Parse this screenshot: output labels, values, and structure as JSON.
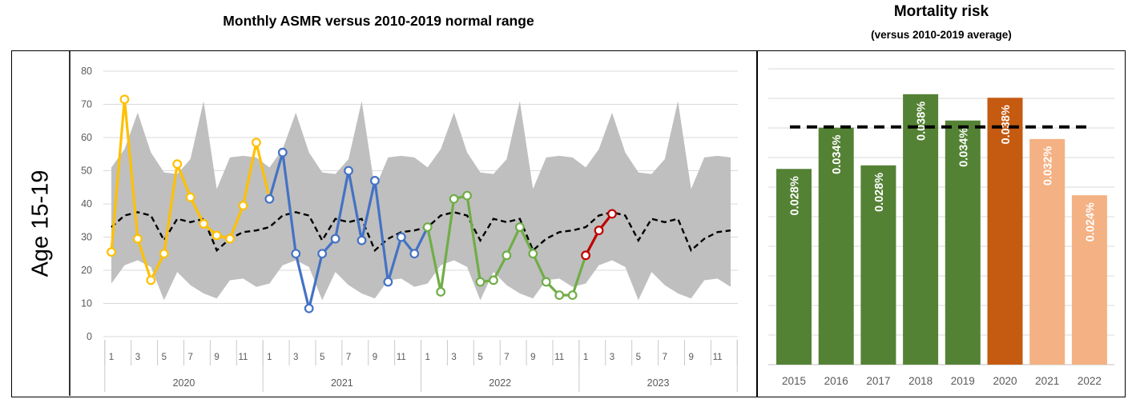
{
  "theme": {
    "grid_color": "#D9D9D9",
    "tick_text_color": "#595959",
    "axis_tick_color": "#C9C9C9",
    "border_color": "#000000"
  },
  "chart_data": [
    {
      "type": "line",
      "title": "Monthly ASMR versus 2010-2019 normal range",
      "row_label": "Age 15-19",
      "ylim": [
        0,
        80
      ],
      "y_ticks": [
        0,
        10,
        20,
        30,
        40,
        50,
        60,
        70,
        80
      ],
      "years": [
        "2020",
        "2021",
        "2022",
        "2023"
      ],
      "month_tick_labels": [
        "1",
        "3",
        "5",
        "7",
        "9",
        "11"
      ],
      "normal_range": {
        "label": "2010-2019 normal range",
        "color": "#BFBFBF",
        "upper_monthly": [
          51,
          56.5,
          67.5,
          55.5,
          49.5,
          49,
          53.5,
          71,
          44.5,
          54,
          54.5,
          54
        ],
        "lower_monthly": [
          16,
          21.5,
          23,
          21,
          11,
          19.5,
          15.5,
          13,
          11.5,
          17,
          17.5,
          15
        ]
      },
      "average_monthly": {
        "label": "2010-2019 average",
        "color": "#000000",
        "style": "dashed",
        "values": [
          33,
          36.5,
          37.5,
          36.5,
          29,
          35.5,
          34.5,
          35.5,
          26,
          29.5,
          31.5,
          32
        ]
      },
      "series": [
        {
          "name": "2020",
          "color": "#FFC000",
          "start_index": 0,
          "marker_count": 12,
          "values": [
            25.5,
            71.5,
            29.5,
            17,
            25,
            52,
            42,
            34,
            30.5,
            29.5,
            39.5,
            58.5,
            41.5
          ]
        },
        {
          "name": "2021",
          "color": "#4472C4",
          "start_index": 12,
          "marker_count": 12,
          "values": [
            41.5,
            55.5,
            25,
            8.5,
            25,
            29.5,
            50,
            29,
            47,
            16.5,
            30,
            25,
            33
          ]
        },
        {
          "name": "2022",
          "color": "#70AD47",
          "start_index": 24,
          "marker_count": 12,
          "values": [
            33,
            13.5,
            41.5,
            42.5,
            16.5,
            17,
            24.5,
            33,
            25,
            16.5,
            12.5,
            12.5,
            24.5
          ]
        },
        {
          "name": "2023",
          "color": "#C00000",
          "start_index": 36,
          "marker_count": 3,
          "values": [
            24.5,
            32,
            37
          ]
        }
      ]
    },
    {
      "type": "bar",
      "title": "Mortality risk",
      "subtitle": "(versus 2010-2019 average)",
      "categories": [
        "2015",
        "2016",
        "2017",
        "2018",
        "2019",
        "2020",
        "2021",
        "2022"
      ],
      "bar_labels": [
        "0.028%",
        "0.034%",
        "0.028%",
        "0.038%",
        "0.034%",
        "0.038%",
        "0.032%",
        "0.024%"
      ],
      "values_pct": [
        0.028,
        0.034,
        0.028,
        0.038,
        0.034,
        0.038,
        0.032,
        0.024
      ],
      "render_heights_pct": [
        0.0275,
        0.0333,
        0.028,
        0.038,
        0.0343,
        0.0375,
        0.0317,
        0.0238
      ],
      "average_line_pct": 0.0334,
      "bar_colors": [
        "#548235",
        "#548235",
        "#548235",
        "#548235",
        "#548235",
        "#C55A11",
        "#F4B183",
        "#F4B183"
      ],
      "label_color": "#FFFFFF"
    }
  ]
}
